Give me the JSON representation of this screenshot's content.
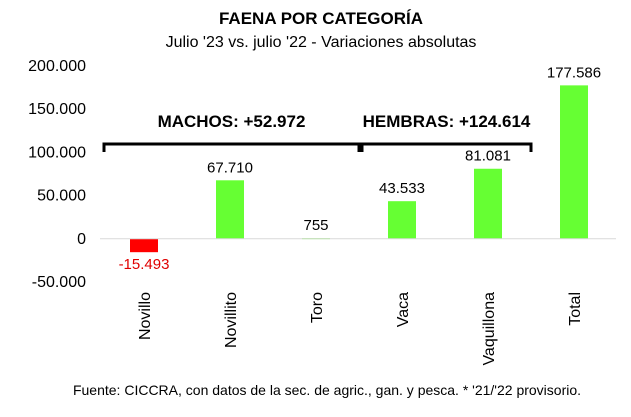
{
  "chart_data": {
    "type": "bar",
    "title": "FAENA POR CATEGORÍA",
    "subtitle": "Julio '23 vs. julio '22 - Variaciones absolutas",
    "categories": [
      "Novillo",
      "Novillito",
      "Toro",
      "Vaca",
      "Vaquillona",
      "Total"
    ],
    "values": [
      -15493,
      67710,
      755,
      43533,
      81081,
      177586
    ],
    "data_labels": [
      "-15.493",
      "67.710",
      "755",
      "43.533",
      "81.081",
      "177.586"
    ],
    "ylim": [
      -50000,
      200000
    ],
    "yticks": [
      -50000,
      0,
      50000,
      100000,
      150000,
      200000
    ],
    "ytick_labels": [
      "-50.000",
      "0",
      "50.000",
      "100.000",
      "150.000",
      "200.000"
    ],
    "groups": [
      {
        "label": "MACHOS: +52.972",
        "from": 0,
        "to": 2
      },
      {
        "label": "HEMBRAS: +124.614",
        "from": 3,
        "to": 4
      }
    ],
    "colors": {
      "positive": "#66ff33",
      "negative": "#ff0000",
      "negative_label": "#e00000"
    },
    "grid": false,
    "source": "Fuente: CICCRA, con datos de la sec. de agric., gan. y pesca. * '21/'22 provisorio."
  }
}
